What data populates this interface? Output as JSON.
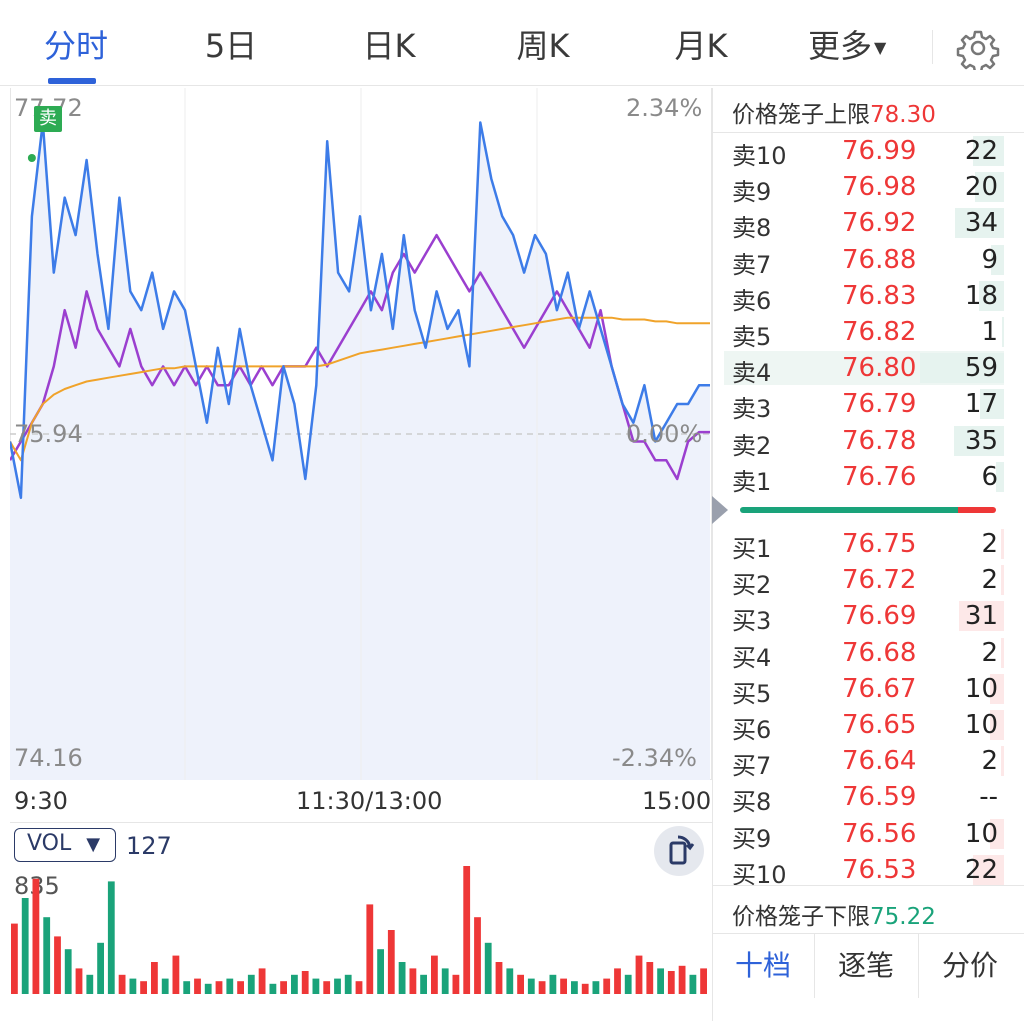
{
  "tabs": [
    {
      "label": "分时",
      "active": true
    },
    {
      "label": "5日"
    },
    {
      "label": "日K"
    },
    {
      "label": "周K"
    },
    {
      "label": "月K"
    }
  ],
  "more_label": "更多",
  "chart": {
    "price_high": "77.72",
    "price_base": "75.94",
    "price_low": "74.16",
    "pct_high": "2.34%",
    "pct_base": "0.00%",
    "pct_low": "-2.34%",
    "sell_marker": "卖",
    "time_start": "9:30",
    "time_mid": "11:30/13:00",
    "time_end": "15:00",
    "colors": {
      "price_line": "#3d7ce8",
      "avg_line": "#f0a32a",
      "index_line": "#9b3fcf",
      "fill": "#eef2fb"
    }
  },
  "chart_data": {
    "type": "line",
    "ylim": [
      74.16,
      77.72
    ],
    "y_base": 75.94,
    "series": [
      {
        "values": [
          75.9,
          75.6,
          77.1,
          77.6,
          76.8,
          77.2,
          77.0,
          77.4,
          76.9,
          76.5,
          77.2,
          76.7,
          76.6,
          76.8,
          76.5,
          76.7,
          76.6,
          76.3,
          76.0,
          76.4,
          76.1,
          76.5,
          76.2,
          76.0,
          75.8,
          76.3,
          76.1,
          75.7,
          76.2,
          77.5,
          76.8,
          76.7,
          77.1,
          76.6,
          76.9,
          76.5,
          77.0,
          76.6,
          76.4,
          76.7,
          76.5,
          76.6,
          76.3,
          77.6,
          77.3,
          77.1,
          77.0,
          76.8,
          77.0,
          76.9,
          76.6,
          76.8,
          76.5,
          76.7,
          76.5,
          76.3,
          76.1,
          76.0,
          76.2,
          75.9,
          76.0,
          76.1,
          76.1,
          76.2,
          76.2
        ]
      },
      {
        "values": [
          75.9,
          75.8,
          76.0,
          76.1,
          76.15,
          76.18,
          76.2,
          76.22,
          76.23,
          76.24,
          76.25,
          76.26,
          76.27,
          76.28,
          76.29,
          76.29,
          76.3,
          76.3,
          76.3,
          76.3,
          76.3,
          76.3,
          76.3,
          76.3,
          76.3,
          76.3,
          76.3,
          76.3,
          76.3,
          76.31,
          76.33,
          76.35,
          76.37,
          76.38,
          76.39,
          76.4,
          76.41,
          76.42,
          76.43,
          76.44,
          76.45,
          76.46,
          76.47,
          76.48,
          76.49,
          76.5,
          76.51,
          76.52,
          76.53,
          76.54,
          76.55,
          76.56,
          76.56,
          76.56,
          76.56,
          76.56,
          76.55,
          76.55,
          76.55,
          76.54,
          76.54,
          76.53,
          76.53,
          76.53,
          76.53
        ]
      },
      {
        "values": [
          75.8,
          75.9,
          76.0,
          76.1,
          76.3,
          76.6,
          76.4,
          76.7,
          76.5,
          76.4,
          76.3,
          76.5,
          76.3,
          76.2,
          76.3,
          76.2,
          76.3,
          76.2,
          76.3,
          76.2,
          76.2,
          76.3,
          76.2,
          76.3,
          76.2,
          76.3,
          76.3,
          76.3,
          76.4,
          76.3,
          76.4,
          76.5,
          76.6,
          76.7,
          76.6,
          76.8,
          76.9,
          76.8,
          76.9,
          77.0,
          76.9,
          76.8,
          76.7,
          76.8,
          76.7,
          76.6,
          76.5,
          76.4,
          76.5,
          76.6,
          76.7,
          76.6,
          76.5,
          76.4,
          76.6,
          76.3,
          76.1,
          75.9,
          75.9,
          75.8,
          75.8,
          75.7,
          75.9,
          75.95,
          75.95
        ]
      }
    ]
  },
  "volume": {
    "button_label": "VOL",
    "current": "127",
    "max_label": "835",
    "bars": [
      {
        "v": 0.55,
        "c": "r"
      },
      {
        "v": 0.75,
        "c": "g"
      },
      {
        "v": 0.9,
        "c": "r"
      },
      {
        "v": 0.6,
        "c": "g"
      },
      {
        "v": 0.45,
        "c": "r"
      },
      {
        "v": 0.35,
        "c": "g"
      },
      {
        "v": 0.2,
        "c": "r"
      },
      {
        "v": 0.15,
        "c": "g"
      },
      {
        "v": 0.4,
        "c": "g"
      },
      {
        "v": 0.88,
        "c": "g"
      },
      {
        "v": 0.15,
        "c": "r"
      },
      {
        "v": 0.12,
        "c": "g"
      },
      {
        "v": 0.1,
        "c": "r"
      },
      {
        "v": 0.25,
        "c": "r"
      },
      {
        "v": 0.12,
        "c": "g"
      },
      {
        "v": 0.3,
        "c": "r"
      },
      {
        "v": 0.1,
        "c": "g"
      },
      {
        "v": 0.12,
        "c": "r"
      },
      {
        "v": 0.08,
        "c": "g"
      },
      {
        "v": 0.1,
        "c": "r"
      },
      {
        "v": 0.12,
        "c": "g"
      },
      {
        "v": 0.1,
        "c": "r"
      },
      {
        "v": 0.15,
        "c": "g"
      },
      {
        "v": 0.2,
        "c": "r"
      },
      {
        "v": 0.08,
        "c": "g"
      },
      {
        "v": 0.1,
        "c": "r"
      },
      {
        "v": 0.15,
        "c": "g"
      },
      {
        "v": 0.18,
        "c": "r"
      },
      {
        "v": 0.12,
        "c": "g"
      },
      {
        "v": 0.1,
        "c": "r"
      },
      {
        "v": 0.12,
        "c": "g"
      },
      {
        "v": 0.15,
        "c": "g"
      },
      {
        "v": 0.1,
        "c": "r"
      },
      {
        "v": 0.7,
        "c": "r"
      },
      {
        "v": 0.35,
        "c": "g"
      },
      {
        "v": 0.5,
        "c": "r"
      },
      {
        "v": 0.25,
        "c": "g"
      },
      {
        "v": 0.2,
        "c": "r"
      },
      {
        "v": 0.15,
        "c": "g"
      },
      {
        "v": 0.3,
        "c": "r"
      },
      {
        "v": 0.2,
        "c": "g"
      },
      {
        "v": 0.15,
        "c": "r"
      },
      {
        "v": 1.0,
        "c": "r"
      },
      {
        "v": 0.6,
        "c": "r"
      },
      {
        "v": 0.4,
        "c": "g"
      },
      {
        "v": 0.25,
        "c": "r"
      },
      {
        "v": 0.2,
        "c": "g"
      },
      {
        "v": 0.15,
        "c": "r"
      },
      {
        "v": 0.12,
        "c": "g"
      },
      {
        "v": 0.1,
        "c": "r"
      },
      {
        "v": 0.15,
        "c": "g"
      },
      {
        "v": 0.12,
        "c": "r"
      },
      {
        "v": 0.1,
        "c": "g"
      },
      {
        "v": 0.08,
        "c": "r"
      },
      {
        "v": 0.1,
        "c": "g"
      },
      {
        "v": 0.12,
        "c": "r"
      },
      {
        "v": 0.2,
        "c": "r"
      },
      {
        "v": 0.15,
        "c": "g"
      },
      {
        "v": 0.3,
        "c": "r"
      },
      {
        "v": 0.25,
        "c": "r"
      },
      {
        "v": 0.2,
        "c": "g"
      },
      {
        "v": 0.18,
        "c": "r"
      },
      {
        "v": 0.22,
        "c": "r"
      },
      {
        "v": 0.15,
        "c": "g"
      },
      {
        "v": 0.2,
        "c": "r"
      }
    ]
  },
  "book": {
    "upper_limit_label": "价格笼子上限",
    "upper_limit_value": "78.30",
    "lower_limit_label": "价格笼子下限",
    "lower_limit_value": "75.22",
    "sell": [
      {
        "label": "卖10",
        "price": "76.99",
        "qty": "22",
        "bar": 0.37
      },
      {
        "label": "卖9",
        "price": "76.98",
        "qty": "20",
        "bar": 0.34
      },
      {
        "label": "卖8",
        "price": "76.92",
        "qty": "34",
        "bar": 0.58
      },
      {
        "label": "卖7",
        "price": "76.88",
        "qty": "9",
        "bar": 0.15
      },
      {
        "label": "卖6",
        "price": "76.83",
        "qty": "18",
        "bar": 0.3
      },
      {
        "label": "卖5",
        "price": "76.82",
        "qty": "1",
        "bar": 0.02
      },
      {
        "label": "卖4",
        "price": "76.80",
        "qty": "59",
        "bar": 1.0
      },
      {
        "label": "卖3",
        "price": "76.79",
        "qty": "17",
        "bar": 0.29
      },
      {
        "label": "卖2",
        "price": "76.78",
        "qty": "35",
        "bar": 0.6
      },
      {
        "label": "卖1",
        "price": "76.76",
        "qty": "6",
        "bar": 0.1
      }
    ],
    "buy": [
      {
        "label": "买1",
        "price": "76.75",
        "qty": "2",
        "bar": 0.03
      },
      {
        "label": "买2",
        "price": "76.72",
        "qty": "2",
        "bar": 0.03
      },
      {
        "label": "买3",
        "price": "76.69",
        "qty": "31",
        "bar": 0.53
      },
      {
        "label": "买4",
        "price": "76.68",
        "qty": "2",
        "bar": 0.03
      },
      {
        "label": "买5",
        "price": "76.67",
        "qty": "10",
        "bar": 0.17
      },
      {
        "label": "买6",
        "price": "76.65",
        "qty": "10",
        "bar": 0.17
      },
      {
        "label": "买7",
        "price": "76.64",
        "qty": "2",
        "bar": 0.03
      },
      {
        "label": "买8",
        "price": "76.59",
        "qty": "--",
        "bar": 0
      },
      {
        "label": "买9",
        "price": "76.56",
        "qty": "10",
        "bar": 0.17
      },
      {
        "label": "买10",
        "price": "76.53",
        "qty": "22",
        "bar": 0.37
      }
    ],
    "ratio_buy": 0.85,
    "tabs": [
      {
        "label": "十档",
        "active": true
      },
      {
        "label": "逐笔"
      },
      {
        "label": "分价"
      }
    ]
  }
}
